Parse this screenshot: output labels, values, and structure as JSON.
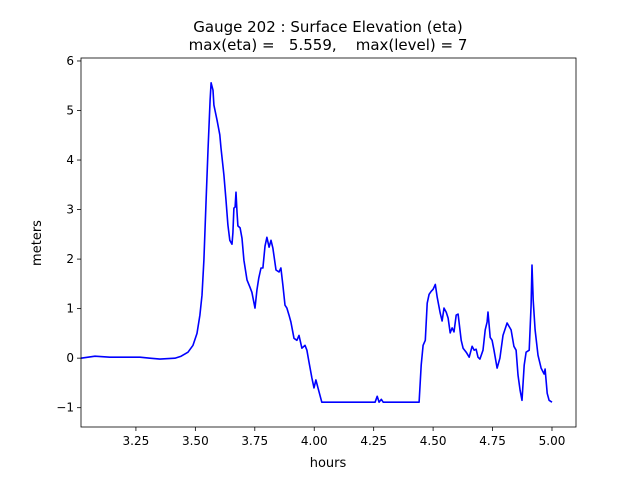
{
  "chart_data": {
    "type": "line",
    "title": "Gauge 202 : Surface Elevation (eta)",
    "subtitle": "max(eta) =   5.559,    max(level) = 7",
    "xlabel": "hours",
    "ylabel": "meters",
    "xlim": [
      3.019,
      5.101
    ],
    "ylim": [
      -1.39,
      6.06
    ],
    "xticks": [
      3.25,
      3.5,
      3.75,
      4.0,
      4.25,
      4.5,
      4.75,
      5.0
    ],
    "xtick_labels": [
      "3.25",
      "3.50",
      "3.75",
      "4.00",
      "4.25",
      "4.50",
      "4.75",
      "5.00"
    ],
    "yticks": [
      -1,
      0,
      1,
      2,
      3,
      4,
      5,
      6
    ],
    "ytick_labels": [
      "−1",
      "0",
      "1",
      "2",
      "3",
      "4",
      "5",
      "6"
    ],
    "grid": false,
    "series": [
      {
        "color": "#0000ff",
        "x": [
          3.019,
          3.078,
          3.14,
          3.267,
          3.309,
          3.351,
          3.414,
          3.44,
          3.469,
          3.49,
          3.507,
          3.519,
          3.528,
          3.536,
          3.545,
          3.553,
          3.562,
          3.566,
          3.574,
          3.578,
          3.591,
          3.603,
          3.608,
          3.62,
          3.629,
          3.637,
          3.645,
          3.654,
          3.658,
          3.662,
          3.667,
          3.671,
          3.675,
          3.679,
          3.688,
          3.696,
          3.704,
          3.717,
          3.73,
          3.738,
          3.751,
          3.759,
          3.767,
          3.776,
          3.784,
          3.793,
          3.801,
          3.81,
          3.818,
          3.826,
          3.839,
          3.852,
          3.86,
          3.868,
          3.877,
          3.885,
          3.894,
          3.902,
          3.915,
          3.927,
          3.936,
          3.948,
          3.961,
          3.969,
          3.978,
          3.99,
          3.999,
          4.007,
          4.016,
          4.032,
          4.256,
          4.265,
          4.273,
          4.282,
          4.29,
          4.441,
          4.45,
          4.458,
          4.467,
          4.475,
          4.483,
          4.492,
          4.5,
          4.509,
          4.517,
          4.53,
          4.538,
          4.546,
          4.555,
          4.563,
          4.572,
          4.58,
          4.588,
          4.597,
          4.605,
          4.618,
          4.626,
          4.639,
          4.652,
          4.664,
          4.673,
          4.681,
          4.689,
          4.697,
          4.71,
          4.719,
          4.727,
          4.731,
          4.74,
          4.748,
          4.756,
          4.769,
          4.781,
          4.794,
          4.811,
          4.828,
          4.84,
          4.849,
          4.857,
          4.866,
          4.874,
          4.883,
          4.891,
          4.904,
          4.912,
          4.916,
          4.921,
          4.929,
          4.941,
          4.954,
          4.967,
          4.971,
          4.98,
          4.988,
          5.0
        ],
        "y": [
          0,
          0.04,
          0.02,
          0.02,
          0,
          -0.02,
          0,
          0.04,
          0.12,
          0.26,
          0.5,
          0.87,
          1.27,
          1.98,
          3.19,
          4.2,
          5.21,
          5.559,
          5.41,
          5.11,
          4.81,
          4.51,
          4.24,
          3.7,
          3.19,
          2.69,
          2.38,
          2.3,
          2.53,
          3.03,
          3.05,
          3.35,
          2.95,
          2.67,
          2.63,
          2.42,
          1.98,
          1.58,
          1.43,
          1.33,
          1.01,
          1.37,
          1.62,
          1.82,
          1.82,
          2.26,
          2.44,
          2.24,
          2.38,
          2.22,
          1.78,
          1.74,
          1.82,
          1.47,
          1.07,
          1.01,
          0.87,
          0.73,
          0.4,
          0.36,
          0.46,
          0.2,
          0.26,
          0.16,
          -0.08,
          -0.4,
          -0.6,
          -0.44,
          -0.6,
          -0.89,
          -0.89,
          -0.77,
          -0.89,
          -0.83,
          -0.89,
          -0.89,
          -0.14,
          0.26,
          0.36,
          1.11,
          1.29,
          1.35,
          1.39,
          1.49,
          1.23,
          0.91,
          0.75,
          1.01,
          0.93,
          0.81,
          0.51,
          0.61,
          0.53,
          0.87,
          0.89,
          0.36,
          0.2,
          0.12,
          0.02,
          0.24,
          0.16,
          0.18,
          0.02,
          -0.02,
          0.16,
          0.57,
          0.73,
          0.93,
          0.42,
          0.36,
          0.16,
          -0.2,
          0,
          0.46,
          0.71,
          0.57,
          0.24,
          0.16,
          -0.34,
          -0.65,
          -0.85,
          -0.14,
          0.12,
          0.16,
          1.07,
          1.88,
          1.17,
          0.57,
          0.06,
          -0.2,
          -0.32,
          -0.22,
          -0.71,
          -0.85,
          -0.89
        ]
      }
    ]
  }
}
